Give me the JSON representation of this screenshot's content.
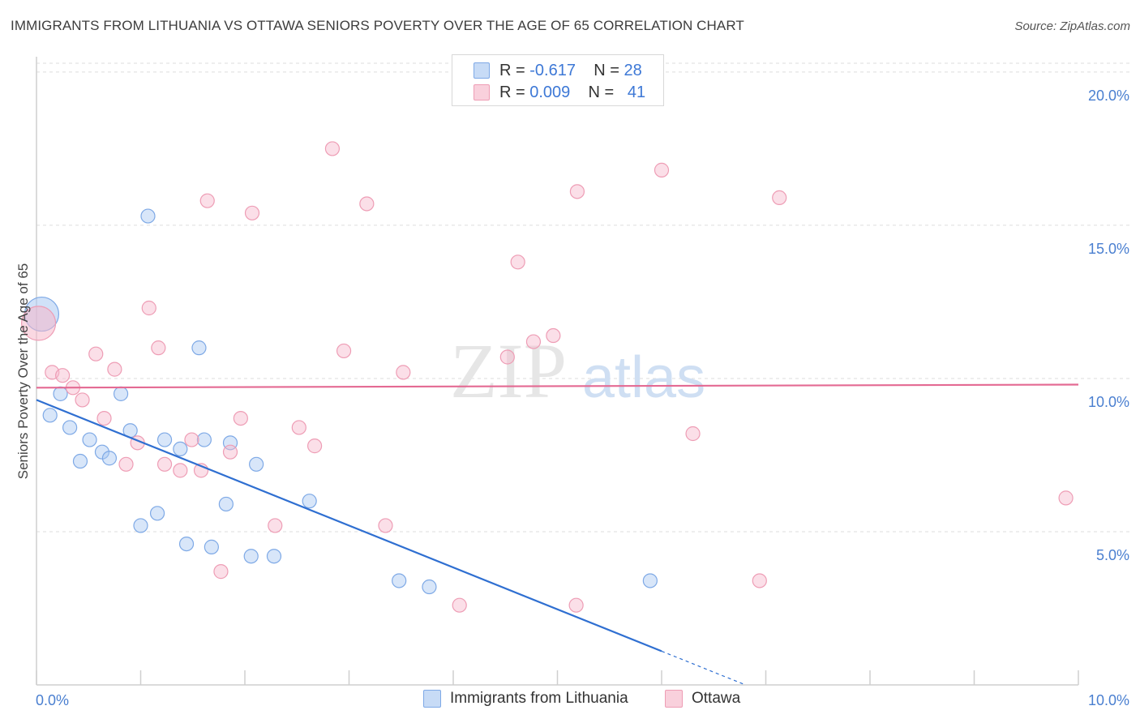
{
  "title": "IMMIGRANTS FROM LITHUANIA VS OTTAWA SENIORS POVERTY OVER THE AGE OF 65 CORRELATION CHART",
  "source": "Source: ZipAtlas.com",
  "watermark": {
    "zip": "ZIP",
    "atlas": "atlas"
  },
  "legend": {
    "rows": [
      {
        "r_label": "R =",
        "r_value": "-0.617",
        "n_label": "N =",
        "n_value": "28",
        "color": "#a9c8f2"
      },
      {
        "r_label": "R =",
        "r_value": "0.009",
        "n_label": "N =",
        "n_value": "41",
        "color": "#f6b8cb"
      }
    ]
  },
  "bottom_legend": [
    {
      "label": "Immigrants from Lithuania",
      "color": "#a9c8f2"
    },
    {
      "label": "Ottawa",
      "color": "#f6b8cb"
    }
  ],
  "chart_data": {
    "type": "scatter",
    "xlabel": "",
    "ylabel": "Seniors Poverty Over the Age of 65",
    "xlim": [
      0,
      10
    ],
    "ylim": [
      0,
      20.5
    ],
    "x_tick_labels": [
      "0.0%",
      "10.0%"
    ],
    "y_tick_values": [
      5,
      10,
      15,
      20
    ],
    "y_tick_labels": [
      "5.0%",
      "10.0%",
      "15.0%",
      "20.0%"
    ],
    "grid": true,
    "series": [
      {
        "name": "Immigrants from Lithuania",
        "color": "#a9c8f2",
        "stroke": "#7ea9e6",
        "trend_color": "#2f6fd1",
        "trend": {
          "x0": 0,
          "y0": 9.3,
          "x1": 6.0,
          "y1": 1.1,
          "dash_to_x": 6.8
        },
        "points": [
          {
            "x": 0.05,
            "y": 12.1,
            "big": true
          },
          {
            "x": 0.13,
            "y": 8.8
          },
          {
            "x": 0.23,
            "y": 9.5
          },
          {
            "x": 0.32,
            "y": 8.4
          },
          {
            "x": 0.42,
            "y": 7.3
          },
          {
            "x": 0.51,
            "y": 8.0
          },
          {
            "x": 0.63,
            "y": 7.6
          },
          {
            "x": 0.7,
            "y": 7.4
          },
          {
            "x": 0.81,
            "y": 9.5
          },
          {
            "x": 0.9,
            "y": 8.3
          },
          {
            "x": 1.0,
            "y": 5.2
          },
          {
            "x": 1.07,
            "y": 15.3
          },
          {
            "x": 1.16,
            "y": 5.6
          },
          {
            "x": 1.23,
            "y": 8.0
          },
          {
            "x": 1.38,
            "y": 7.7
          },
          {
            "x": 1.44,
            "y": 4.6
          },
          {
            "x": 1.56,
            "y": 11.0
          },
          {
            "x": 1.61,
            "y": 8.0
          },
          {
            "x": 1.68,
            "y": 4.5
          },
          {
            "x": 1.82,
            "y": 5.9
          },
          {
            "x": 1.86,
            "y": 7.9
          },
          {
            "x": 2.06,
            "y": 4.2
          },
          {
            "x": 2.11,
            "y": 7.2
          },
          {
            "x": 2.28,
            "y": 4.2
          },
          {
            "x": 2.62,
            "y": 6.0
          },
          {
            "x": 3.48,
            "y": 3.4
          },
          {
            "x": 3.77,
            "y": 3.2
          },
          {
            "x": 5.89,
            "y": 3.4
          }
        ]
      },
      {
        "name": "Ottawa",
        "color": "#f6b8cb",
        "stroke": "#ee9db5",
        "trend_color": "#e46a93",
        "trend": {
          "x0": 0,
          "y0": 9.7,
          "x1": 10,
          "y1": 9.8
        },
        "points": [
          {
            "x": 0.02,
            "y": 11.8,
            "big": true
          },
          {
            "x": 0.15,
            "y": 10.2
          },
          {
            "x": 0.25,
            "y": 10.1
          },
          {
            "x": 0.35,
            "y": 9.7
          },
          {
            "x": 0.44,
            "y": 9.3
          },
          {
            "x": 0.57,
            "y": 10.8
          },
          {
            "x": 0.65,
            "y": 8.7
          },
          {
            "x": 0.75,
            "y": 10.3
          },
          {
            "x": 0.86,
            "y": 7.2
          },
          {
            "x": 0.97,
            "y": 7.9
          },
          {
            "x": 1.08,
            "y": 12.3
          },
          {
            "x": 1.17,
            "y": 11.0
          },
          {
            "x": 1.23,
            "y": 7.2
          },
          {
            "x": 1.38,
            "y": 7.0
          },
          {
            "x": 1.49,
            "y": 8.0
          },
          {
            "x": 1.58,
            "y": 7.0
          },
          {
            "x": 1.64,
            "y": 15.8
          },
          {
            "x": 1.77,
            "y": 3.7
          },
          {
            "x": 1.86,
            "y": 7.6
          },
          {
            "x": 1.96,
            "y": 8.7
          },
          {
            "x": 2.07,
            "y": 15.4
          },
          {
            "x": 2.29,
            "y": 5.2
          },
          {
            "x": 2.52,
            "y": 8.4
          },
          {
            "x": 2.67,
            "y": 7.8
          },
          {
            "x": 2.84,
            "y": 17.5
          },
          {
            "x": 2.95,
            "y": 10.9
          },
          {
            "x": 3.17,
            "y": 15.7
          },
          {
            "x": 3.35,
            "y": 5.2
          },
          {
            "x": 3.52,
            "y": 10.2
          },
          {
            "x": 4.06,
            "y": 2.6
          },
          {
            "x": 4.52,
            "y": 10.7
          },
          {
            "x": 4.62,
            "y": 13.8
          },
          {
            "x": 4.77,
            "y": 11.2
          },
          {
            "x": 4.96,
            "y": 11.4
          },
          {
            "x": 5.18,
            "y": 2.6
          },
          {
            "x": 5.19,
            "y": 16.1
          },
          {
            "x": 6.0,
            "y": 16.8
          },
          {
            "x": 6.3,
            "y": 8.2
          },
          {
            "x": 6.94,
            "y": 3.4
          },
          {
            "x": 7.13,
            "y": 15.9
          },
          {
            "x": 9.88,
            "y": 6.1
          }
        ]
      }
    ]
  }
}
